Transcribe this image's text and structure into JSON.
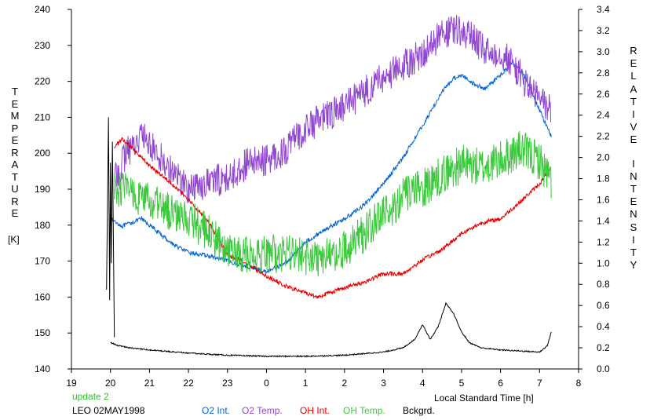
{
  "chart_data": {
    "type": "line",
    "title": "",
    "xlabel": "Local Standard Time [h]",
    "ylabel_left": "TEMPERATURE",
    "ylabel_left_unit": "[K]",
    "ylabel_right": "RELATIVE INTENSITY",
    "xlim": [
      19,
      32
    ],
    "ylim_left": [
      140,
      240
    ],
    "ylim_right": [
      0.0,
      3.4
    ],
    "x_ticks": [
      19,
      20,
      21,
      22,
      23,
      24,
      25,
      26,
      27,
      28,
      29,
      30,
      31,
      32
    ],
    "x_tick_labels": [
      "19",
      "20",
      "21",
      "22",
      "23",
      "0",
      "1",
      "2",
      "3",
      "4",
      "5",
      "6",
      "7",
      "8"
    ],
    "y_left_ticks": [
      "140",
      "150",
      "160",
      "170",
      "180",
      "190",
      "200",
      "210",
      "220",
      "230",
      "240"
    ],
    "y_right_ticks": [
      "0.0",
      "0.2",
      "0.4",
      "0.6",
      "0.8",
      "1.0",
      "1.2",
      "1.4",
      "1.6",
      "1.8",
      "2.0",
      "2.2",
      "2.4",
      "2.6",
      "2.8",
      "3.0",
      "3.2",
      "3.4"
    ],
    "grid": false,
    "legend_position": "bottom",
    "series": [
      {
        "name": "O2 Int.",
        "color": "#0064d2",
        "axis": "right",
        "noise": 0.02,
        "x": [
          20.0,
          20.3,
          20.8,
          21.2,
          21.6,
          22.0,
          22.5,
          23.0,
          23.5,
          24.0,
          24.5,
          25.0,
          25.5,
          26.0,
          26.5,
          27.0,
          27.5,
          28.0,
          28.5,
          28.8,
          29.0,
          29.3,
          29.6,
          30.0,
          30.3,
          30.6,
          31.0,
          31.3
        ],
        "y": [
          1.42,
          1.35,
          1.42,
          1.3,
          1.18,
          1.1,
          1.07,
          1.02,
          0.97,
          0.92,
          1.0,
          1.2,
          1.32,
          1.42,
          1.55,
          1.75,
          2.0,
          2.3,
          2.62,
          2.75,
          2.78,
          2.7,
          2.65,
          2.78,
          2.9,
          2.78,
          2.45,
          2.2
        ]
      },
      {
        "name": "O2 Temp.",
        "color": "#9146d2",
        "axis": "left",
        "noise": 4.5,
        "x": [
          20.1,
          20.4,
          20.8,
          21.2,
          21.6,
          22.0,
          22.5,
          23.0,
          23.5,
          24.0,
          24.5,
          25.0,
          25.5,
          26.0,
          26.5,
          27.0,
          27.5,
          28.0,
          28.5,
          28.8,
          29.0,
          29.3,
          29.6,
          30.0,
          30.3,
          30.6,
          31.0,
          31.3
        ],
        "y": [
          192,
          200,
          205,
          200,
          195,
          190,
          192,
          193,
          197,
          198,
          201,
          207,
          210,
          213,
          217,
          221,
          224,
          228,
          233,
          234,
          234,
          232,
          228,
          228,
          225,
          220,
          215,
          212
        ]
      },
      {
        "name": "OH Int.",
        "color": "#e60000",
        "axis": "right",
        "noise": 0.02,
        "x": [
          20.1,
          20.3,
          20.6,
          21.0,
          21.5,
          22.0,
          22.5,
          23.0,
          23.5,
          24.0,
          24.5,
          25.0,
          25.3,
          25.6,
          26.0,
          26.5,
          27.0,
          27.5,
          28.0,
          28.5,
          29.0,
          29.5,
          30.0,
          30.5,
          31.0,
          31.3
        ],
        "y": [
          2.1,
          2.17,
          2.08,
          1.92,
          1.78,
          1.6,
          1.4,
          1.08,
          1.0,
          0.88,
          0.78,
          0.72,
          0.68,
          0.72,
          0.77,
          0.82,
          0.9,
          0.9,
          1.03,
          1.13,
          1.28,
          1.38,
          1.42,
          1.58,
          1.75,
          1.9
        ]
      },
      {
        "name": "OH Temp.",
        "color": "#3cc83c",
        "axis": "left",
        "noise": 5.5,
        "x": [
          20.1,
          20.5,
          21.0,
          21.5,
          22.0,
          22.5,
          23.0,
          23.5,
          24.0,
          24.5,
          25.0,
          25.5,
          26.0,
          26.5,
          27.0,
          27.5,
          28.0,
          28.5,
          29.0,
          29.5,
          30.0,
          30.5,
          31.0,
          31.3
        ],
        "y": [
          190,
          190,
          186,
          184,
          182,
          178,
          172,
          172,
          172,
          172,
          171,
          171,
          173,
          178,
          183,
          188,
          190,
          194,
          197,
          196,
          198,
          201,
          198,
          192
        ]
      },
      {
        "name": "Bckgrd.",
        "color": "#000000",
        "axis": "right",
        "noise": 0.006,
        "x": [
          20.0,
          20.2,
          20.5,
          21.0,
          22.0,
          23.0,
          24.0,
          25.0,
          26.0,
          27.0,
          27.5,
          27.8,
          28.0,
          28.2,
          28.4,
          28.6,
          28.8,
          29.0,
          29.2,
          29.5,
          30.0,
          30.5,
          31.0,
          31.2,
          31.3
        ],
        "y": [
          0.25,
          0.22,
          0.2,
          0.18,
          0.15,
          0.13,
          0.12,
          0.12,
          0.13,
          0.16,
          0.2,
          0.28,
          0.42,
          0.28,
          0.4,
          0.62,
          0.52,
          0.35,
          0.25,
          0.2,
          0.18,
          0.17,
          0.16,
          0.22,
          0.35
        ]
      }
    ],
    "annotations": [
      "update 2",
      "LEO 02MAY1998"
    ]
  }
}
